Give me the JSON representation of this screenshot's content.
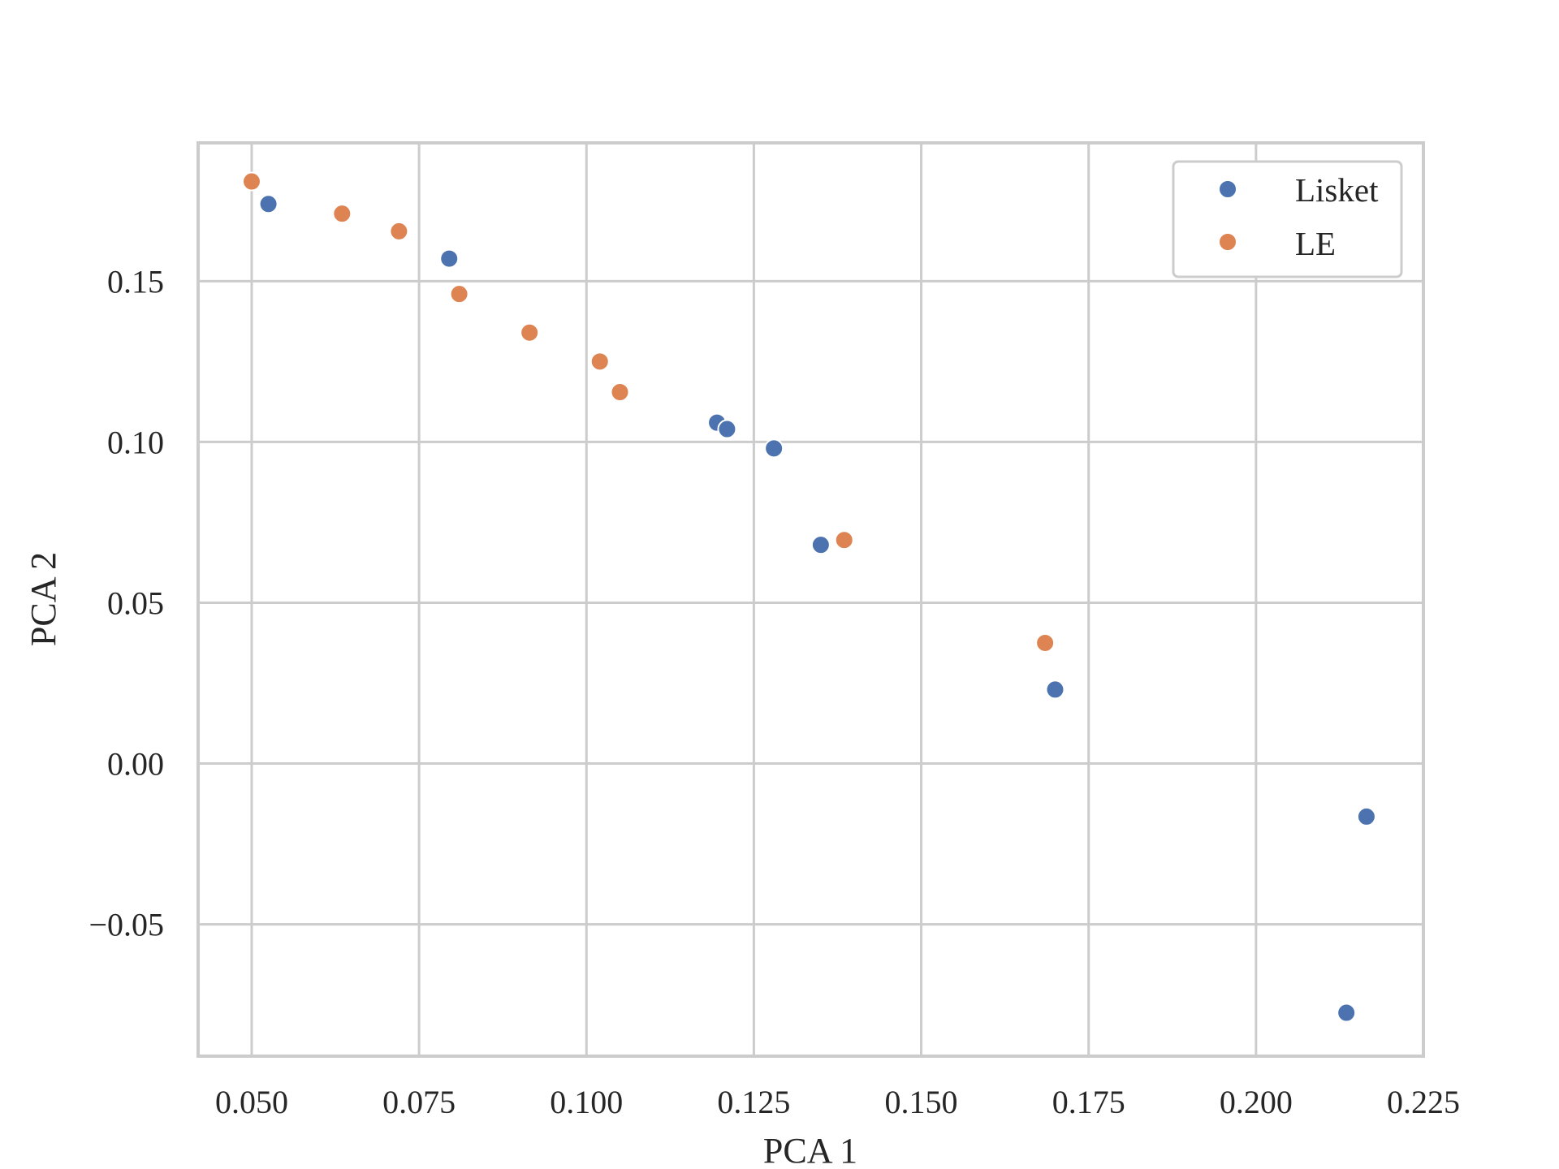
{
  "chart_data": {
    "type": "scatter",
    "xlabel": "PCA 1",
    "ylabel": "PCA 2",
    "xlim": [
      0.042,
      0.225
    ],
    "ylim": [
      -0.091,
      0.193
    ],
    "xticks": [
      0.05,
      0.075,
      0.1,
      0.125,
      0.15,
      0.175,
      0.2,
      0.225
    ],
    "xtick_labels": [
      "0.050",
      "0.075",
      "0.100",
      "0.125",
      "0.150",
      "0.175",
      "0.200",
      "0.225"
    ],
    "yticks": [
      -0.05,
      0.0,
      0.05,
      0.1,
      0.15
    ],
    "ytick_labels": [
      "−0.05",
      "0.00",
      "0.05",
      "0.10",
      "0.15"
    ],
    "grid": true,
    "legend_position": "top-right",
    "series": [
      {
        "name": "Lisket",
        "color": "#4c72b0",
        "points": [
          {
            "x": 0.0525,
            "y": 0.174
          },
          {
            "x": 0.0795,
            "y": 0.157
          },
          {
            "x": 0.1195,
            "y": 0.106
          },
          {
            "x": 0.121,
            "y": 0.104
          },
          {
            "x": 0.128,
            "y": 0.098
          },
          {
            "x": 0.135,
            "y": 0.068
          },
          {
            "x": 0.17,
            "y": 0.023
          },
          {
            "x": 0.2165,
            "y": -0.0165
          },
          {
            "x": 0.2135,
            "y": -0.0775
          }
        ]
      },
      {
        "name": "LE",
        "color": "#dd8452",
        "points": [
          {
            "x": 0.05,
            "y": 0.181
          },
          {
            "x": 0.0635,
            "y": 0.171
          },
          {
            "x": 0.072,
            "y": 0.1655
          },
          {
            "x": 0.081,
            "y": 0.146
          },
          {
            "x": 0.0915,
            "y": 0.134
          },
          {
            "x": 0.102,
            "y": 0.125
          },
          {
            "x": 0.105,
            "y": 0.1155
          },
          {
            "x": 0.1385,
            "y": 0.0695
          },
          {
            "x": 0.1685,
            "y": 0.0375
          }
        ]
      }
    ]
  }
}
